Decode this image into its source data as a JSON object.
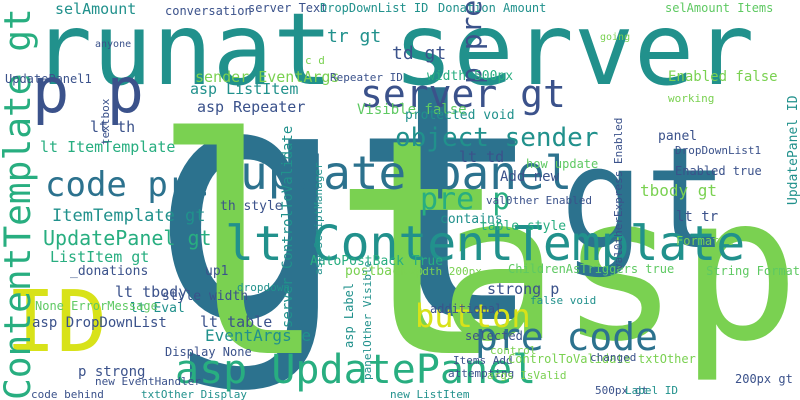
{
  "palette": {
    "purple": "#440154",
    "indigo": "#3b528b",
    "blue": "#2c728e",
    "teal": "#21918c",
    "green": "#28ae80",
    "lime": "#5ec962",
    "chartreuse": "#7ad151",
    "yellow": "#d8e219"
  },
  "words": [
    {
      "text": "gt",
      "color": "blue",
      "rotate": 0
    },
    {
      "text": "lt",
      "color": "chartreuse",
      "rotate": 0
    },
    {
      "text": "asp",
      "color": "chartreuse",
      "rotate": 0
    },
    {
      "text": "runat server",
      "color": "teal",
      "rotate": 0
    },
    {
      "text": "gt",
      "color": "blue",
      "rotate": 0
    },
    {
      "text": "ID",
      "color": "yellow",
      "rotate": 0
    },
    {
      "text": "p p",
      "color": "indigo",
      "rotate": 0
    },
    {
      "text": "lt ContentTemplate",
      "color": "teal",
      "rotate": 0
    },
    {
      "text": "ContentTemplate gt",
      "color": "green",
      "rotate": -90
    },
    {
      "text": "update panel",
      "color": "blue",
      "rotate": 0
    },
    {
      "text": "asp UpdatePanel",
      "color": "green",
      "rotate": 0
    },
    {
      "text": "server gt",
      "color": "indigo",
      "rotate": 0
    },
    {
      "text": "pre code",
      "color": "blue",
      "rotate": 0
    },
    {
      "text": "code pre",
      "color": "blue",
      "rotate": 0
    },
    {
      "text": "button",
      "color": "yellow",
      "rotate": 0
    },
    {
      "text": "object sender",
      "color": "teal",
      "rotate": 0
    },
    {
      "text": "pre p",
      "color": "green",
      "rotate": 0
    },
    {
      "text": "p pre",
      "color": "indigo",
      "rotate": -90
    },
    {
      "text": "UpdatePanel gt",
      "color": "green",
      "rotate": 0
    },
    {
      "text": "ItemTemplate gt",
      "color": "teal",
      "rotate": 0
    },
    {
      "text": "selAmount",
      "color": "teal",
      "rotate": 0
    },
    {
      "text": "conversation",
      "color": "indigo",
      "rotate": 0
    },
    {
      "text": "server Text",
      "color": "indigo",
      "rotate": 0
    },
    {
      "text": "DropDownList ID",
      "color": "teal",
      "rotate": 0
    },
    {
      "text": "Donation Amount",
      "color": "teal",
      "rotate": 0
    },
    {
      "text": "selAmount Items",
      "color": "lime",
      "rotate": 0
    },
    {
      "text": "tr gt",
      "color": "teal",
      "rotate": 0
    },
    {
      "text": "td gt",
      "color": "indigo",
      "rotate": 0
    },
    {
      "text": "sender EventArgs",
      "color": "chartreuse",
      "rotate": 0
    },
    {
      "text": "asp ListItem",
      "color": "teal",
      "rotate": 0
    },
    {
      "text": "asp Repeater",
      "color": "indigo",
      "rotate": 0
    },
    {
      "text": "Repeater ID",
      "color": "indigo",
      "rotate": 0
    },
    {
      "text": "width 500px",
      "color": "green",
      "rotate": 0
    },
    {
      "text": "Enabled false",
      "color": "chartreuse",
      "rotate": 0
    },
    {
      "text": "working",
      "color": "chartreuse",
      "rotate": 0
    },
    {
      "text": "Visible false",
      "color": "lime",
      "rotate": 0
    },
    {
      "text": "protected void",
      "color": "teal",
      "rotate": 0
    },
    {
      "text": "lt th",
      "color": "indigo",
      "rotate": 0
    },
    {
      "text": "lt ItemTemplate",
      "color": "green",
      "rotate": 0
    },
    {
      "text": "lt td",
      "color": "indigo",
      "rotate": 0
    },
    {
      "text": "ListItem gt",
      "color": "green",
      "rotate": 0
    },
    {
      "text": "th style",
      "color": "indigo",
      "rotate": 0
    },
    {
      "text": "contains",
      "color": "teal",
      "rotate": 0
    },
    {
      "text": "val0ther Enabled",
      "color": "indigo",
      "rotate": 0
    },
    {
      "text": "table style",
      "color": "green",
      "rotate": 0
    },
    {
      "text": "tbody gt",
      "color": "chartreuse",
      "rotate": 0
    },
    {
      "text": "lt tr",
      "color": "indigo",
      "rotate": 0
    },
    {
      "text": "Enabled true",
      "color": "indigo",
      "rotate": 0
    },
    {
      "text": "DropDownList1",
      "color": "indigo",
      "rotate": 0
    },
    {
      "text": "panel",
      "color": "indigo",
      "rotate": 0
    },
    {
      "text": "_donations",
      "color": "indigo",
      "rotate": 0
    },
    {
      "text": "AutoPostBack True",
      "color": "green",
      "rotate": 0
    },
    {
      "text": "up1",
      "color": "indigo",
      "rotate": 0
    },
    {
      "text": "lt tbody",
      "color": "indigo",
      "rotate": 0
    },
    {
      "text": "lt Eval",
      "color": "teal",
      "rotate": 0
    },
    {
      "text": "None ErrorMessage",
      "color": "lime",
      "rotate": 0
    },
    {
      "text": "asp DropDownList",
      "color": "indigo",
      "rotate": 0
    },
    {
      "text": "postback p",
      "color": "chartreuse",
      "rotate": 0
    },
    {
      "text": "width 200px",
      "color": "chartreuse",
      "rotate": 0
    },
    {
      "text": "ChildrenAsTriggers true",
      "color": "lime",
      "rotate": 0
    },
    {
      "text": "String Format",
      "color": "lime",
      "rotate": 0
    },
    {
      "text": "Format c",
      "color": "chartreuse",
      "rotate": 0
    },
    {
      "text": "strong p",
      "color": "indigo",
      "rotate": 0
    },
    {
      "text": "style width",
      "color": "indigo",
      "rotate": 0
    },
    {
      "text": "lt table",
      "color": "indigo",
      "rotate": 0
    },
    {
      "text": "EventArgs e",
      "color": "teal",
      "rotate": 0
    },
    {
      "text": "Display None",
      "color": "indigo",
      "rotate": 0
    },
    {
      "text": "p strong",
      "color": "indigo",
      "rotate": 0
    },
    {
      "text": "new EventHandler",
      "color": "indigo",
      "rotate": 0
    },
    {
      "text": "code behind",
      "color": "indigo",
      "rotate": 0
    },
    {
      "text": "txtOther Display",
      "color": "teal",
      "rotate": 0
    },
    {
      "text": "new ListItem",
      "color": "teal",
      "rotate": 0
    },
    {
      "text": "additional",
      "color": "indigo",
      "rotate": 0
    },
    {
      "text": "selected",
      "color": "indigo",
      "rotate": 0
    },
    {
      "text": "false void",
      "color": "teal",
      "rotate": 0
    },
    {
      "text": "control",
      "color": "chartreuse",
      "rotate": 0
    },
    {
      "text": "Items Add",
      "color": "indigo",
      "rotate": 0
    },
    {
      "text": "ControlToValidate txtOther",
      "color": "chartreuse",
      "rotate": 0
    },
    {
      "text": "changed",
      "color": "indigo",
      "rotate": 0
    },
    {
      "text": "attempting",
      "color": "indigo",
      "rotate": 0
    },
    {
      "text": "args IsValid",
      "color": "chartreuse",
      "rotate": 0
    },
    {
      "text": "500px gt",
      "color": "indigo",
      "rotate": 0
    },
    {
      "text": "Label ID",
      "color": "teal",
      "rotate": 0
    },
    {
      "text": "200px gt",
      "color": "indigo",
      "rotate": 0
    },
    {
      "text": "anyone",
      "color": "indigo",
      "rotate": 0
    },
    {
      "text": "textbox",
      "color": "indigo",
      "rotate": -90
    },
    {
      "text": "c d",
      "color": "chartreuse",
      "rotate": 0
    },
    {
      "text": "going",
      "color": "chartreuse",
      "rotate": 0
    },
    {
      "text": "dropdown",
      "color": "teal",
      "rotate": 0
    },
    {
      "text": "UpdatePanel1",
      "color": "indigo",
      "rotate": 0
    },
    {
      "text": "server ControlToValidate",
      "color": "teal",
      "rotate": -90
    },
    {
      "text": "asp ScriptManager",
      "color": "teal",
      "rotate": -90
    },
    {
      "text": "asp Label",
      "color": "teal",
      "rotate": -90
    },
    {
      "text": "panelOther Visible",
      "color": "teal",
      "rotate": -90
    },
    {
      "text": "val0therExpress Enabled",
      "color": "indigo",
      "rotate": -90
    },
    {
      "text": "UpdatePanel ID",
      "color": "teal",
      "rotate": -90
    },
    {
      "text": "Add new",
      "color": "indigo",
      "rotate": 0
    },
    {
      "text": "how update",
      "color": "lime",
      "rotate": 0
    }
  ]
}
